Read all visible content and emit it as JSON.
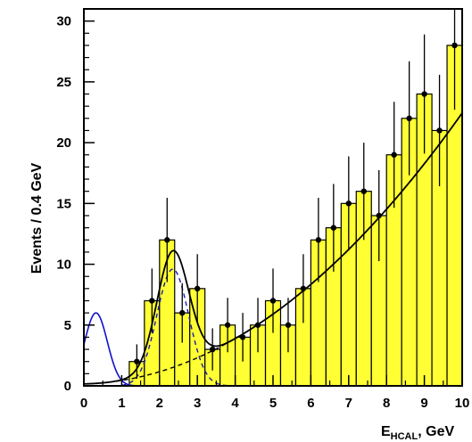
{
  "chart_data": {
    "type": "bar",
    "xlabel_main": "E",
    "xlabel_sub": "HCAL",
    "xlabel_rest": ", GeV",
    "ylabel": "Events / 0.4 GeV",
    "xlim": [
      0,
      10
    ],
    "ylim": [
      0,
      31
    ],
    "x_ticks": [
      0,
      1,
      2,
      3,
      4,
      5,
      6,
      7,
      8,
      9,
      10
    ],
    "y_ticks": [
      0,
      5,
      10,
      15,
      20,
      25,
      30
    ],
    "bin_width": 0.4,
    "bins": [
      {
        "x": 1.2,
        "value": 2
      },
      {
        "x": 1.6,
        "value": 7
      },
      {
        "x": 2.0,
        "value": 12
      },
      {
        "x": 2.4,
        "value": 6
      },
      {
        "x": 2.8,
        "value": 8
      },
      {
        "x": 3.2,
        "value": 3
      },
      {
        "x": 3.6,
        "value": 5
      },
      {
        "x": 4.0,
        "value": 4
      },
      {
        "x": 4.4,
        "value": 5
      },
      {
        "x": 4.8,
        "value": 7
      },
      {
        "x": 5.2,
        "value": 5
      },
      {
        "x": 5.6,
        "value": 8
      },
      {
        "x": 6.0,
        "value": 12
      },
      {
        "x": 6.4,
        "value": 13
      },
      {
        "x": 6.8,
        "value": 15
      },
      {
        "x": 7.2,
        "value": 16
      },
      {
        "x": 7.6,
        "value": 14
      },
      {
        "x": 8.0,
        "value": 19
      },
      {
        "x": 8.4,
        "value": 22
      },
      {
        "x": 8.8,
        "value": 24
      },
      {
        "x": 9.2,
        "value": 21
      },
      {
        "x": 9.6,
        "value": 28
      }
    ],
    "fit_models": {
      "peak": {
        "amplitude": 9.6,
        "mean": 2.35,
        "sigma": 0.42
      },
      "background": {
        "a": 0.16,
        "b": 0.068,
        "c": 0.216
      },
      "blue_peak": {
        "amplitude": 6.0,
        "mean": 0.32,
        "sigma": 0.3
      }
    },
    "colors": {
      "fill": "#ffff33",
      "fit": "#000000",
      "dashed": "#1a1aaa",
      "blue": "#1010cc"
    }
  }
}
